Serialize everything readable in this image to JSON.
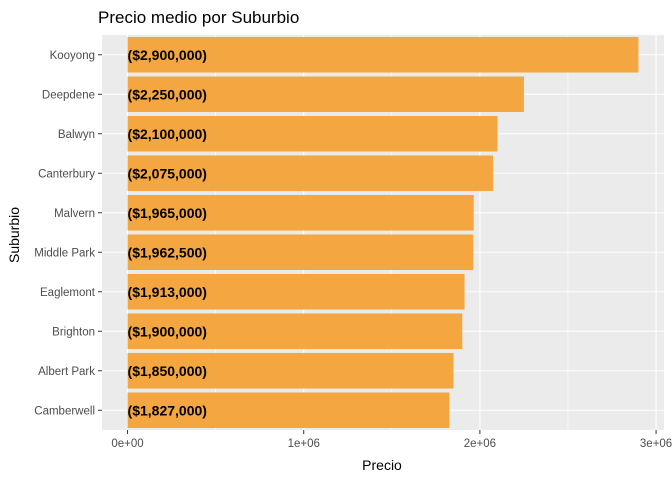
{
  "chart_data": {
    "type": "bar",
    "orientation": "horizontal",
    "title": "Precio medio por Suburbio",
    "xlabel": "Precio",
    "ylabel": "Suburbio",
    "categories": [
      "Kooyong",
      "Deepdene",
      "Balwyn",
      "Canterbury",
      "Malvern",
      "Middle Park",
      "Eaglemont",
      "Brighton",
      "Albert Park",
      "Camberwell"
    ],
    "values": [
      2900000,
      2250000,
      2100000,
      2075000,
      1965000,
      1962500,
      1913000,
      1900000,
      1850000,
      1827000
    ],
    "data_labels": [
      "($2,900,000)",
      "($2,250,000)",
      "($2,100,000)",
      "($2,075,000)",
      "($1,965,000)",
      "($1,962,500)",
      "($1,913,000)",
      "($1,900,000)",
      "($1,850,000)",
      "($1,827,000)"
    ],
    "x_ticks": [
      0,
      1000000,
      2000000,
      3000000
    ],
    "x_tick_labels": [
      "0e+00",
      "1e+06",
      "2e+06",
      "3e+06"
    ],
    "xlim": [
      -145000,
      3045000
    ],
    "bar_color": "#F4A640",
    "panel_background": "#EBEBEB",
    "grid": true,
    "legend": "none"
  }
}
